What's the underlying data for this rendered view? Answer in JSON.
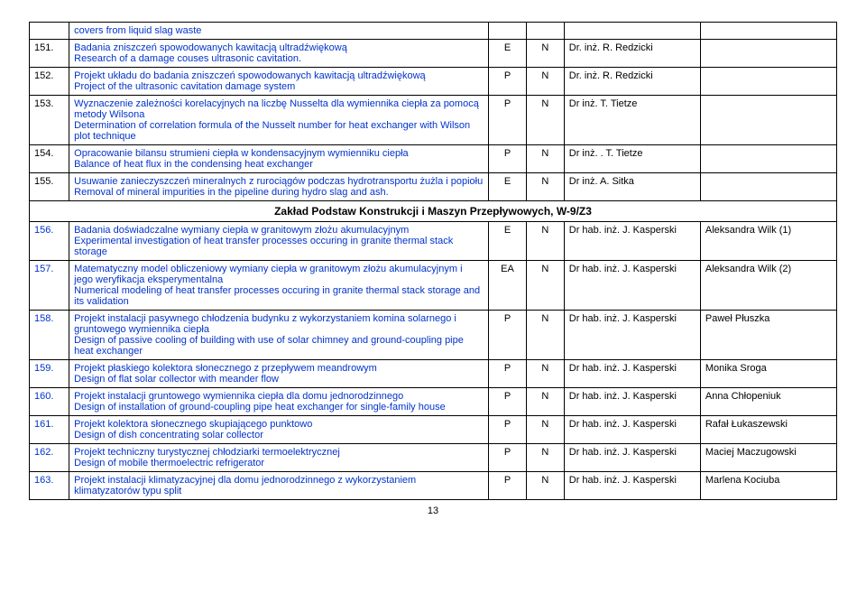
{
  "pageNumber": "13",
  "sectionHeader": "Zakład Podstaw Konstrukcji i Maszyn Przepływowych, W-9/Z3",
  "top0": {
    "desc": "covers from liquid slag waste"
  },
  "rows": [
    {
      "num": "151.",
      "pl": "Badania zniszczeń spowodowanych kawitacją ultradźwiękową",
      "en": "Research of a damage couses ultrasonic cavitation.",
      "c1": "E",
      "c2": "N",
      "sup": "Dr. inż. R. Redzicki",
      "stu": ""
    },
    {
      "num": "152.",
      "pl": "Projekt układu do badania zniszczeń spowodowanych kawitacją ultradźwiękową",
      "en": "Project of the ultrasonic cavitation damage system",
      "c1": "P",
      "c2": "N",
      "sup": "Dr. inż. R. Redzicki",
      "stu": ""
    },
    {
      "num": "153.",
      "pl": "Wyznaczenie zależności korelacyjnych na liczbę Nusselta dla wymiennika ciepła za pomocą metody Wilsona",
      "en": "Determination of correlation formula of the Nusselt  number for heat exchanger with Wilson plot technique",
      "c1": "P",
      "c2": "N",
      "sup": "Dr inż. T. Tietze",
      "stu": ""
    },
    {
      "num": "154.",
      "pl": "Opracowanie bilansu strumieni ciepła w kondensacyjnym wymienniku ciepła",
      "en": "Balance of heat flux in the condensing heat exchanger",
      "c1": "P",
      "c2": "N",
      "sup": "Dr inż. . T. Tietze",
      "stu": ""
    },
    {
      "num": "155.",
      "pl": "Usuwanie zanieczyszczeń mineralnych z rurociągów podczas hydrotransportu żużla i popiołu",
      "en": "Removal of mineral impurities in the pipeline during hydro slag and ash.",
      "c1": "E",
      "c2": "N",
      "sup": "Dr inż. A. Sitka",
      "stu": ""
    }
  ],
  "rows2": [
    {
      "num": "156.",
      "pl": "Badania doświadczalne wymiany ciepła w granitowym złożu akumulacyjnym",
      "en": "Experimental investigation of heat transfer processes occuring in granite thermal stack storage",
      "c1": "E",
      "c2": "N",
      "sup": "Dr hab. inż.  J. Kasperski",
      "stu": "Aleksandra Wilk (1)"
    },
    {
      "num": "157.",
      "pl": "Matematyczny model obliczeniowy wymiany ciepła w granitowym złożu akumulacyjnym i jego weryfikacja eksperymentalna",
      "en": "Numerical modeling of heat transfer processes occuring in granite thermal stack storage and its validation",
      "c1": "EA",
      "c2": "N",
      "sup": "Dr hab. inż.  J. Kasperski",
      "stu": "Aleksandra Wilk (2)"
    },
    {
      "num": "158.",
      "pl": "Projekt instalacji pasywnego chłodzenia budynku z wykorzystaniem komina solarnego i gruntowego wymiennika ciepła",
      "en": "Design of passive cooling of building with use of solar chimney and ground-coupling pipe heat exchanger",
      "c1": "P",
      "c2": "N",
      "sup": "Dr hab. inż.  J. Kasperski",
      "stu": "Paweł Płuszka"
    },
    {
      "num": "159.",
      "pl": "Projekt płaskiego kolektora słonecznego z przepływem meandrowym",
      "en": "Design of flat solar collector with meander flow",
      "c1": "P",
      "c2": "N",
      "sup": "Dr hab. inż.  J. Kasperski",
      "stu": "Monika Sroga"
    },
    {
      "num": "160.",
      "pl": "Projekt instalacji gruntowego wymiennika ciepła dla domu jednorodzinnego",
      "en": "Design of installation of ground-coupling pipe heat exchanger for single-family house",
      "c1": "P",
      "c2": "N",
      "sup": "Dr hab. inż.  J. Kasperski",
      "stu": "Anna Chłopeniuk"
    },
    {
      "num": "161.",
      "pl": "Projekt kolektora słonecznego skupiającego punktowo",
      "en": "Design of dish concentrating solar collector",
      "c1": "P",
      "c2": "N",
      "sup": "Dr hab. inż.  J. Kasperski",
      "stu": "Rafał Łukaszewski"
    },
    {
      "num": "162.",
      "pl": "Projekt techniczny turystycznej chłodziarki termoelektrycznej",
      "en": "Design of mobile thermoelectric refrigerator",
      "c1": "P",
      "c2": "N",
      "sup": "Dr hab. inż.  J. Kasperski",
      "stu": "Maciej Maczugowski"
    },
    {
      "num": "163.",
      "pl": "Projekt instalacji klimatyzacyjnej dla domu jednorodzinnego z wykorzystaniem klimatyzatorów typu split",
      "en": "",
      "c1": "P",
      "c2": "N",
      "sup": "Dr hab. inż.  J. Kasperski",
      "stu": "Marlena Kociuba"
    }
  ]
}
